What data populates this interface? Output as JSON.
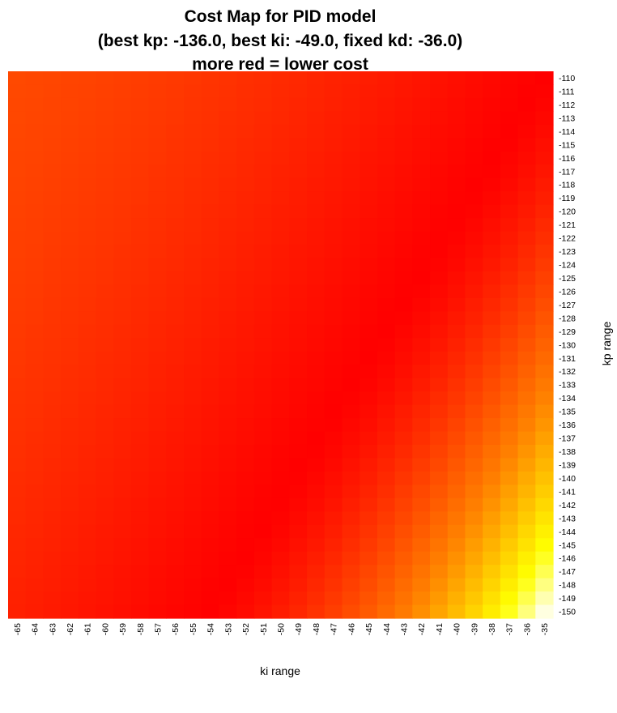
{
  "chart_data": {
    "type": "heatmap",
    "title_lines": [
      "Cost Map for PID model",
      "(best kp: -136.0, best ki: -49.0, fixed kd: -36.0)",
      "more red = lower cost"
    ],
    "xlabel": "ki range",
    "ylabel": "kp range",
    "x_ticks": [
      -65,
      -64,
      -63,
      -62,
      -61,
      -60,
      -59,
      -58,
      -57,
      -56,
      -55,
      -54,
      -53,
      -52,
      -51,
      -50,
      -49,
      -48,
      -47,
      -46,
      -45,
      -44,
      -43,
      -42,
      -41,
      -40,
      -39,
      -38,
      -37,
      -36,
      -35
    ],
    "y_ticks": [
      -110,
      -111,
      -112,
      -113,
      -114,
      -115,
      -116,
      -117,
      -118,
      -119,
      -120,
      -121,
      -122,
      -123,
      -124,
      -125,
      -126,
      -127,
      -128,
      -129,
      -130,
      -131,
      -132,
      -133,
      -134,
      -135,
      -136,
      -137,
      -138,
      -139,
      -140,
      -141,
      -142,
      -143,
      -144,
      -145,
      -146,
      -147,
      -148,
      -149,
      -150
    ],
    "colorscale": [
      "#ff0000",
      "#ff8000",
      "#ffff00",
      "#ffffe0"
    ],
    "color_meaning": "more red = lower cost",
    "grid": false,
    "legend": "none"
  }
}
